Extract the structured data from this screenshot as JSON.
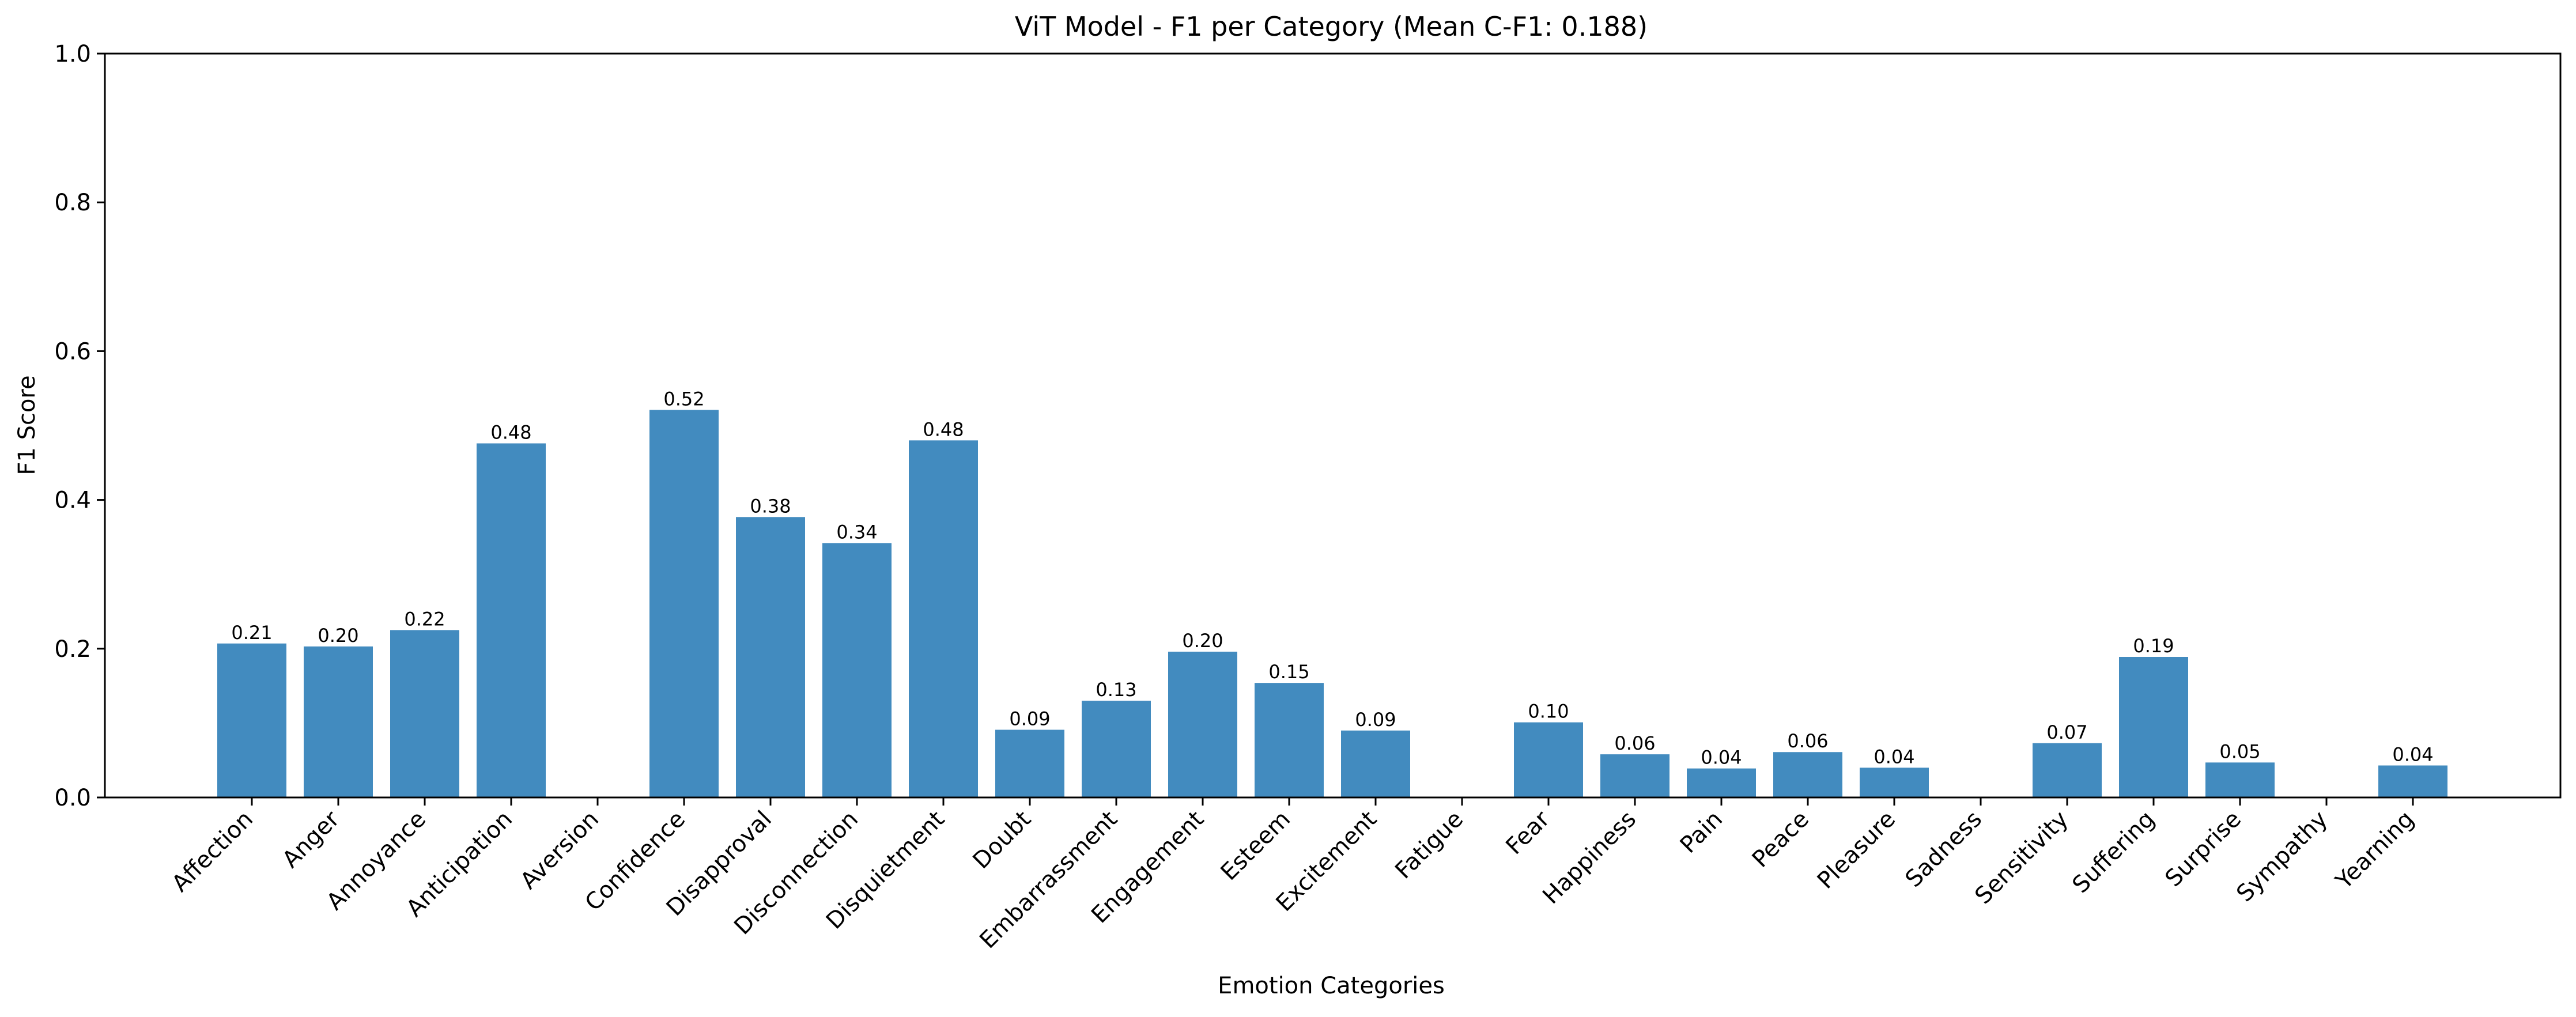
{
  "chart_data": {
    "type": "bar",
    "title": "ViT Model - F1 per Category (Mean C-F1: 0.188)",
    "xlabel": "Emotion Categories",
    "ylabel": "F1 Score",
    "ylim": [
      0,
      1.0
    ],
    "yticks": [
      "0.0",
      "0.2",
      "0.4",
      "0.6",
      "0.8",
      "1.0"
    ],
    "grid": false,
    "bar_color": "#428bbf",
    "categories": [
      "Affection",
      "Anger",
      "Annoyance",
      "Anticipation",
      "Aversion",
      "Confidence",
      "Disapproval",
      "Disconnection",
      "Disquietment",
      "Doubt",
      "Embarrassment",
      "Engagement",
      "Esteem",
      "Excitement",
      "Fatigue",
      "Fear",
      "Happiness",
      "Pain",
      "Peace",
      "Pleasure",
      "Sadness",
      "Sensitivity",
      "Suffering",
      "Surprise",
      "Sympathy",
      "Yearning"
    ],
    "values": [
      0.207,
      0.203,
      0.225,
      0.476,
      0.0,
      0.521,
      0.377,
      0.342,
      0.48,
      0.091,
      0.13,
      0.196,
      0.154,
      0.09,
      0.0,
      0.101,
      0.058,
      0.039,
      0.061,
      0.04,
      0.0,
      0.073,
      0.189,
      0.047,
      0.0,
      0.043
    ],
    "value_labels": [
      "0.21",
      "0.20",
      "0.22",
      "0.48",
      "",
      "0.52",
      "0.38",
      "0.34",
      "0.48",
      "0.09",
      "0.13",
      "0.20",
      "0.15",
      "0.09",
      "",
      "0.10",
      "0.06",
      "0.04",
      "0.06",
      "0.04",
      "",
      "0.07",
      "0.19",
      "0.05",
      "",
      "0.04"
    ]
  }
}
